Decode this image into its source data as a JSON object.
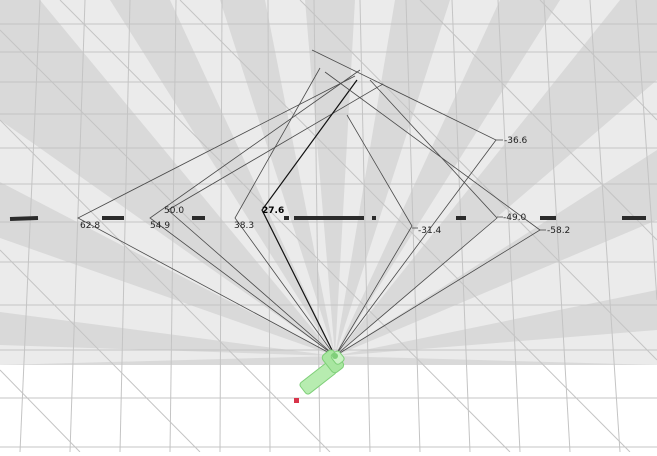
{
  "viewport": {
    "tool": "sensor-visualization-3d",
    "colors": {
      "floor_far": "#d9d9d9",
      "floor_near": "#ffffff",
      "beam_light": "#ebebeb",
      "grid_line": "#bdbdbd",
      "ray_line": "#4a4a4a",
      "highlight_ray": "#111111",
      "scan_segment": "#2b2b2b",
      "robot_body": "#b7ecb0",
      "robot_edge": "#7fcf79",
      "robot_marker": "#d8344a"
    },
    "robot": {
      "icon": "robot-icon",
      "label": ""
    },
    "ray_labels": [
      "62.8",
      "54.9",
      "50.0",
      "38.3",
      "27.6",
      "-31.4",
      "-36.6",
      "-49.0",
      "-58.2"
    ],
    "highlighted_label": "27.6"
  }
}
